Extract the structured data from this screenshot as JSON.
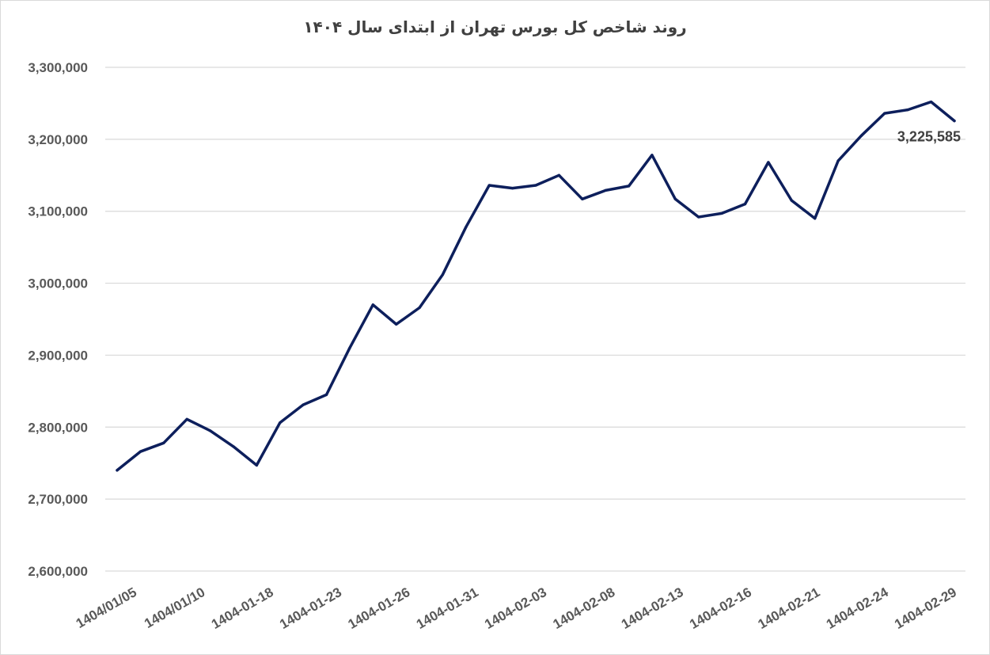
{
  "chart_data": {
    "type": "line",
    "title": "روند شاخص کل بورس تهران از ابتدای سال ۱۴۰۴",
    "xlabel": "",
    "ylabel": "",
    "ylim": [
      2600000,
      3300000
    ],
    "yticks": [
      "2,600,000",
      "2,700,000",
      "2,800,000",
      "2,900,000",
      "3,000,000",
      "3,100,000",
      "3,200,000",
      "3,300,000"
    ],
    "xtick_labels": [
      "1404/01/05",
      "1404/01/10",
      "1404-01-18",
      "1404-01-23",
      "1404-01-26",
      "1404-01-31",
      "1404-02-03",
      "1404-02-08",
      "1404-02-13",
      "1404-02-16",
      "1404-02-21",
      "1404-02-24",
      "1404-02-29"
    ],
    "grid": true,
    "line_color": "#0d1f5c",
    "series": [
      {
        "values": [
          2740000,
          2766000,
          2778000,
          2811000,
          2795000,
          2773000,
          2747000,
          2806000,
          2831000,
          2845000,
          2910000,
          2970000,
          2943000,
          2966000,
          3012000,
          3078000,
          3136000,
          3132000,
          3136000,
          3150000,
          3117000,
          3129000,
          3135000,
          3178000,
          3117000,
          3092000,
          3097000,
          3110000,
          3168000,
          3115000,
          3090000,
          3170000,
          3205000,
          3236000,
          3241000,
          3252000,
          3225585
        ]
      }
    ],
    "data_label": "3,225,585"
  }
}
